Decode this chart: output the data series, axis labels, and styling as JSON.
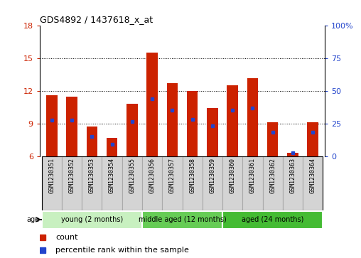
{
  "title": "GDS4892 / 1437618_x_at",
  "samples": [
    "GSM1230351",
    "GSM1230352",
    "GSM1230353",
    "GSM1230354",
    "GSM1230355",
    "GSM1230356",
    "GSM1230357",
    "GSM1230358",
    "GSM1230359",
    "GSM1230360",
    "GSM1230361",
    "GSM1230362",
    "GSM1230363",
    "GSM1230364"
  ],
  "count_values": [
    11.6,
    11.5,
    8.7,
    7.7,
    10.8,
    15.5,
    12.7,
    12.0,
    10.4,
    12.5,
    13.2,
    9.1,
    6.3,
    9.1
  ],
  "percentile_positions": [
    9.3,
    9.3,
    7.8,
    7.1,
    9.2,
    11.3,
    10.2,
    9.4,
    8.8,
    10.2,
    10.4,
    8.2,
    6.3,
    8.2
  ],
  "bar_color": "#cc2200",
  "percentile_color": "#2244cc",
  "ymin": 6,
  "ymax": 18,
  "yticks_left": [
    6,
    9,
    12,
    15,
    18
  ],
  "yticks_right": [
    0,
    25,
    50,
    75,
    100
  ],
  "gridlines": [
    9,
    12,
    15
  ],
  "groups": [
    {
      "label": "young (2 months)",
      "start": 0,
      "end": 5,
      "color": "#c8f0c0"
    },
    {
      "label": "middle aged (12 months)",
      "start": 5,
      "end": 9,
      "color": "#66cc55"
    },
    {
      "label": "aged (24 months)",
      "start": 9,
      "end": 14,
      "color": "#44bb33"
    }
  ],
  "legend_count_label": "count",
  "legend_percentile_label": "percentile rank within the sample",
  "age_label": "age",
  "bar_width": 0.55,
  "cell_bg": "#d4d4d4",
  "cell_border": "#aaaaaa"
}
